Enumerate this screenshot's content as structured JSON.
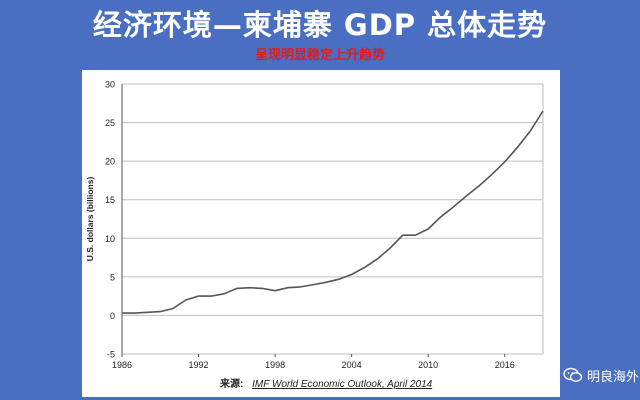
{
  "slide": {
    "title": "经济环境—柬埔寨 GDP 总体走势",
    "subtitle": "呈现明显稳定上升趋势"
  },
  "source": {
    "label": "来源:",
    "text": "IMF World Economic Outlook, April 2014"
  },
  "watermark": {
    "text": "明良海外",
    "icon": "wechat-icon"
  },
  "chart_data": {
    "type": "line",
    "ylabel": "U.S. dollars (billions)",
    "xlabel": "",
    "xlim": [
      1986,
      2019
    ],
    "ylim": [
      -5,
      30
    ],
    "yticks": [
      -5,
      0,
      5,
      10,
      15,
      20,
      25,
      30
    ],
    "xticks": [
      1986,
      1992,
      1998,
      2004,
      2010,
      2016
    ],
    "grid": true,
    "line_color": "#555555",
    "series": [
      {
        "x": [
          1986,
          1987,
          1988,
          1989,
          1990,
          1991,
          1992,
          1993,
          1994,
          1995,
          1996,
          1997,
          1998,
          1999,
          2000,
          2001,
          2002,
          2003,
          2004,
          2005,
          2006,
          2007,
          2008,
          2009,
          2010,
          2011,
          2012,
          2013,
          2014,
          2015,
          2016,
          2017,
          2018,
          2019
        ],
        "values": [
          0.3,
          0.3,
          0.4,
          0.5,
          0.9,
          2.0,
          2.5,
          2.5,
          2.8,
          3.5,
          3.6,
          3.5,
          3.2,
          3.6,
          3.7,
          4.0,
          4.3,
          4.7,
          5.3,
          6.2,
          7.3,
          8.7,
          10.4,
          10.4,
          11.2,
          12.8,
          14.1,
          15.5,
          16.8,
          18.3,
          19.9,
          21.8,
          23.9,
          26.5
        ]
      }
    ]
  }
}
